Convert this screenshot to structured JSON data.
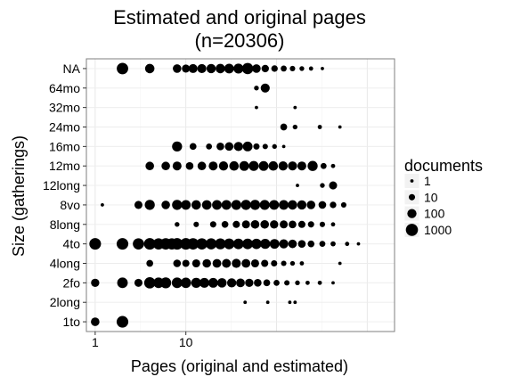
{
  "chart_data": {
    "type": "scatter",
    "title": "Estimated and original pages",
    "subtitle": "(n=20306)",
    "xlabel": "Pages (original and estimated)",
    "ylabel": "Size (gatherings)",
    "x_scale": "log10",
    "xlim": [
      0.8,
      2000
    ],
    "x_ticks": [
      1,
      10
    ],
    "categories": [
      "1to",
      "2long",
      "2fo",
      "4long",
      "4to",
      "8long",
      "8vo",
      "12long",
      "12mo",
      "16mo",
      "24mo",
      "32mo",
      "64mo",
      "NA"
    ],
    "grid": true,
    "legend": {
      "title": "documents",
      "position": "right",
      "sizes": [
        1,
        10,
        100,
        1000
      ],
      "labels": [
        "1",
        "10",
        "100",
        "1000"
      ]
    },
    "points": [
      {
        "y": "NA",
        "x": 2,
        "n": 600
      },
      {
        "y": "NA",
        "x": 4,
        "n": 120
      },
      {
        "y": "NA",
        "x": 8,
        "n": 60
      },
      {
        "y": "NA",
        "x": 10,
        "n": 40
      },
      {
        "y": "NA",
        "x": 12,
        "n": 80
      },
      {
        "y": "NA",
        "x": 15,
        "n": 90
      },
      {
        "y": "NA",
        "x": 19,
        "n": 100
      },
      {
        "y": "NA",
        "x": 24,
        "n": 120
      },
      {
        "y": "NA",
        "x": 30,
        "n": 150
      },
      {
        "y": "NA",
        "x": 38,
        "n": 170
      },
      {
        "y": "NA",
        "x": 48,
        "n": 500
      },
      {
        "y": "NA",
        "x": 60,
        "n": 60
      },
      {
        "y": "NA",
        "x": 75,
        "n": 25
      },
      {
        "y": "NA",
        "x": 95,
        "n": 12
      },
      {
        "y": "NA",
        "x": 120,
        "n": 8
      },
      {
        "y": "NA",
        "x": 150,
        "n": 5
      },
      {
        "y": "NA",
        "x": 190,
        "n": 3
      },
      {
        "y": "NA",
        "x": 240,
        "n": 2
      },
      {
        "y": "NA",
        "x": 320,
        "n": 1
      },
      {
        "y": "64mo",
        "x": 60,
        "n": 3
      },
      {
        "y": "64mo",
        "x": 75,
        "n": 90
      },
      {
        "y": "32mo",
        "x": 60,
        "n": 1
      },
      {
        "y": "32mo",
        "x": 160,
        "n": 1
      },
      {
        "y": "24mo",
        "x": 120,
        "n": 15
      },
      {
        "y": "24mo",
        "x": 160,
        "n": 3
      },
      {
        "y": "24mo",
        "x": 300,
        "n": 2
      },
      {
        "y": "24mo",
        "x": 500,
        "n": 1
      },
      {
        "y": "16mo",
        "x": 8,
        "n": 200
      },
      {
        "y": "16mo",
        "x": 12,
        "n": 15
      },
      {
        "y": "16mo",
        "x": 18,
        "n": 8
      },
      {
        "y": "16mo",
        "x": 24,
        "n": 30
      },
      {
        "y": "16mo",
        "x": 30,
        "n": 60
      },
      {
        "y": "16mo",
        "x": 38,
        "n": 100
      },
      {
        "y": "16mo",
        "x": 48,
        "n": 150
      },
      {
        "y": "16mo",
        "x": 60,
        "n": 10
      },
      {
        "y": "16mo",
        "x": 75,
        "n": 5
      },
      {
        "y": "16mo",
        "x": 95,
        "n": 3
      },
      {
        "y": "16mo",
        "x": 120,
        "n": 1
      },
      {
        "y": "12mo",
        "x": 4,
        "n": 60
      },
      {
        "y": "12mo",
        "x": 6,
        "n": 60
      },
      {
        "y": "12mo",
        "x": 8,
        "n": 80
      },
      {
        "y": "12mo",
        "x": 11,
        "n": 30
      },
      {
        "y": "12mo",
        "x": 15,
        "n": 60
      },
      {
        "y": "12mo",
        "x": 20,
        "n": 80
      },
      {
        "y": "12mo",
        "x": 26,
        "n": 100
      },
      {
        "y": "12mo",
        "x": 34,
        "n": 120
      },
      {
        "y": "12mo",
        "x": 44,
        "n": 150
      },
      {
        "y": "12mo",
        "x": 56,
        "n": 170
      },
      {
        "y": "12mo",
        "x": 72,
        "n": 150
      },
      {
        "y": "12mo",
        "x": 92,
        "n": 120
      },
      {
        "y": "12mo",
        "x": 118,
        "n": 100
      },
      {
        "y": "12mo",
        "x": 150,
        "n": 90
      },
      {
        "y": "12mo",
        "x": 190,
        "n": 80
      },
      {
        "y": "12mo",
        "x": 250,
        "n": 200
      },
      {
        "y": "12mo",
        "x": 330,
        "n": 8
      },
      {
        "y": "12mo",
        "x": 420,
        "n": 2
      },
      {
        "y": "12long",
        "x": 170,
        "n": 1
      },
      {
        "y": "12long",
        "x": 320,
        "n": 3
      },
      {
        "y": "12long",
        "x": 420,
        "n": 40
      },
      {
        "y": "8vo",
        "x": 1.2,
        "n": 1
      },
      {
        "y": "8vo",
        "x": 3,
        "n": 40
      },
      {
        "y": "8vo",
        "x": 4,
        "n": 200
      },
      {
        "y": "8vo",
        "x": 6,
        "n": 60
      },
      {
        "y": "8vo",
        "x": 8,
        "n": 200
      },
      {
        "y": "8vo",
        "x": 10,
        "n": 150
      },
      {
        "y": "8vo",
        "x": 13,
        "n": 120
      },
      {
        "y": "8vo",
        "x": 17,
        "n": 130
      },
      {
        "y": "8vo",
        "x": 22,
        "n": 150
      },
      {
        "y": "8vo",
        "x": 28,
        "n": 160
      },
      {
        "y": "8vo",
        "x": 36,
        "n": 180
      },
      {
        "y": "8vo",
        "x": 46,
        "n": 200
      },
      {
        "y": "8vo",
        "x": 58,
        "n": 200
      },
      {
        "y": "8vo",
        "x": 74,
        "n": 180
      },
      {
        "y": "8vo",
        "x": 94,
        "n": 160
      },
      {
        "y": "8vo",
        "x": 120,
        "n": 150
      },
      {
        "y": "8vo",
        "x": 150,
        "n": 120
      },
      {
        "y": "8vo",
        "x": 190,
        "n": 100
      },
      {
        "y": "8vo",
        "x": 240,
        "n": 60
      },
      {
        "y": "8vo",
        "x": 320,
        "n": 30
      },
      {
        "y": "8vo",
        "x": 420,
        "n": 12
      },
      {
        "y": "8vo",
        "x": 550,
        "n": 5
      },
      {
        "y": "8long",
        "x": 8,
        "n": 3
      },
      {
        "y": "8long",
        "x": 13,
        "n": 5
      },
      {
        "y": "8long",
        "x": 20,
        "n": 10
      },
      {
        "y": "8long",
        "x": 27,
        "n": 15
      },
      {
        "y": "8long",
        "x": 36,
        "n": 20
      },
      {
        "y": "8long",
        "x": 46,
        "n": 40
      },
      {
        "y": "8long",
        "x": 58,
        "n": 60
      },
      {
        "y": "8long",
        "x": 74,
        "n": 60
      },
      {
        "y": "8long",
        "x": 94,
        "n": 50
      },
      {
        "y": "8long",
        "x": 120,
        "n": 40
      },
      {
        "y": "8long",
        "x": 150,
        "n": 30
      },
      {
        "y": "8long",
        "x": 190,
        "n": 20
      },
      {
        "y": "8long",
        "x": 240,
        "n": 10
      },
      {
        "y": "8long",
        "x": 320,
        "n": 5
      },
      {
        "y": "8long",
        "x": 420,
        "n": 2
      },
      {
        "y": "4to",
        "x": 1,
        "n": 700
      },
      {
        "y": "4to",
        "x": 2,
        "n": 700
      },
      {
        "y": "4to",
        "x": 3,
        "n": 500
      },
      {
        "y": "4to",
        "x": 4,
        "n": 700
      },
      {
        "y": "4to",
        "x": 5,
        "n": 500
      },
      {
        "y": "4to",
        "x": 6,
        "n": 600
      },
      {
        "y": "4to",
        "x": 7,
        "n": 500
      },
      {
        "y": "4to",
        "x": 8,
        "n": 700
      },
      {
        "y": "4to",
        "x": 10,
        "n": 700
      },
      {
        "y": "4to",
        "x": 12,
        "n": 600
      },
      {
        "y": "4to",
        "x": 15,
        "n": 500
      },
      {
        "y": "4to",
        "x": 19,
        "n": 450
      },
      {
        "y": "4to",
        "x": 24,
        "n": 400
      },
      {
        "y": "4to",
        "x": 30,
        "n": 350
      },
      {
        "y": "4to",
        "x": 38,
        "n": 300
      },
      {
        "y": "4to",
        "x": 48,
        "n": 300
      },
      {
        "y": "4to",
        "x": 60,
        "n": 250
      },
      {
        "y": "4to",
        "x": 75,
        "n": 200
      },
      {
        "y": "4to",
        "x": 95,
        "n": 150
      },
      {
        "y": "4to",
        "x": 120,
        "n": 100
      },
      {
        "y": "4to",
        "x": 150,
        "n": 60
      },
      {
        "y": "4to",
        "x": 190,
        "n": 30
      },
      {
        "y": "4to",
        "x": 240,
        "n": 15
      },
      {
        "y": "4to",
        "x": 320,
        "n": 8
      },
      {
        "y": "4to",
        "x": 420,
        "n": 4
      },
      {
        "y": "4to",
        "x": 600,
        "n": 2
      },
      {
        "y": "4to",
        "x": 800,
        "n": 1
      },
      {
        "y": "4long",
        "x": 4,
        "n": 15
      },
      {
        "y": "4long",
        "x": 8,
        "n": 30
      },
      {
        "y": "4long",
        "x": 10,
        "n": 20
      },
      {
        "y": "4long",
        "x": 13,
        "n": 40
      },
      {
        "y": "4long",
        "x": 17,
        "n": 60
      },
      {
        "y": "4long",
        "x": 22,
        "n": 70
      },
      {
        "y": "4long",
        "x": 28,
        "n": 80
      },
      {
        "y": "4long",
        "x": 36,
        "n": 90
      },
      {
        "y": "4long",
        "x": 46,
        "n": 70
      },
      {
        "y": "4long",
        "x": 58,
        "n": 40
      },
      {
        "y": "4long",
        "x": 74,
        "n": 20
      },
      {
        "y": "4long",
        "x": 94,
        "n": 10
      },
      {
        "y": "4long",
        "x": 120,
        "n": 5
      },
      {
        "y": "4long",
        "x": 150,
        "n": 3
      },
      {
        "y": "4long",
        "x": 190,
        "n": 2
      },
      {
        "y": "4long",
        "x": 500,
        "n": 1
      },
      {
        "y": "2fo",
        "x": 1,
        "n": 50
      },
      {
        "y": "2fo",
        "x": 2,
        "n": 300
      },
      {
        "y": "2fo",
        "x": 3,
        "n": 40
      },
      {
        "y": "2fo",
        "x": 4,
        "n": 500
      },
      {
        "y": "2fo",
        "x": 5,
        "n": 300
      },
      {
        "y": "2fo",
        "x": 6,
        "n": 400
      },
      {
        "y": "2fo",
        "x": 8,
        "n": 300
      },
      {
        "y": "2fo",
        "x": 10,
        "n": 250
      },
      {
        "y": "2fo",
        "x": 13,
        "n": 200
      },
      {
        "y": "2fo",
        "x": 16,
        "n": 170
      },
      {
        "y": "2fo",
        "x": 20,
        "n": 150
      },
      {
        "y": "2fo",
        "x": 25,
        "n": 120
      },
      {
        "y": "2fo",
        "x": 32,
        "n": 100
      },
      {
        "y": "2fo",
        "x": 40,
        "n": 70
      },
      {
        "y": "2fo",
        "x": 50,
        "n": 50
      },
      {
        "y": "2fo",
        "x": 62,
        "n": 30
      },
      {
        "y": "2fo",
        "x": 78,
        "n": 15
      },
      {
        "y": "2fo",
        "x": 100,
        "n": 8
      },
      {
        "y": "2fo",
        "x": 130,
        "n": 5
      },
      {
        "y": "2fo",
        "x": 170,
        "n": 3
      },
      {
        "y": "2fo",
        "x": 220,
        "n": 2
      },
      {
        "y": "2fo",
        "x": 300,
        "n": 2
      },
      {
        "y": "2fo",
        "x": 420,
        "n": 1
      },
      {
        "y": "2long",
        "x": 45,
        "n": 1
      },
      {
        "y": "2long",
        "x": 80,
        "n": 1
      },
      {
        "y": "2long",
        "x": 140,
        "n": 1
      },
      {
        "y": "2long",
        "x": 160,
        "n": 1
      },
      {
        "y": "1to",
        "x": 1,
        "n": 60
      },
      {
        "y": "1to",
        "x": 2,
        "n": 700
      }
    ]
  }
}
